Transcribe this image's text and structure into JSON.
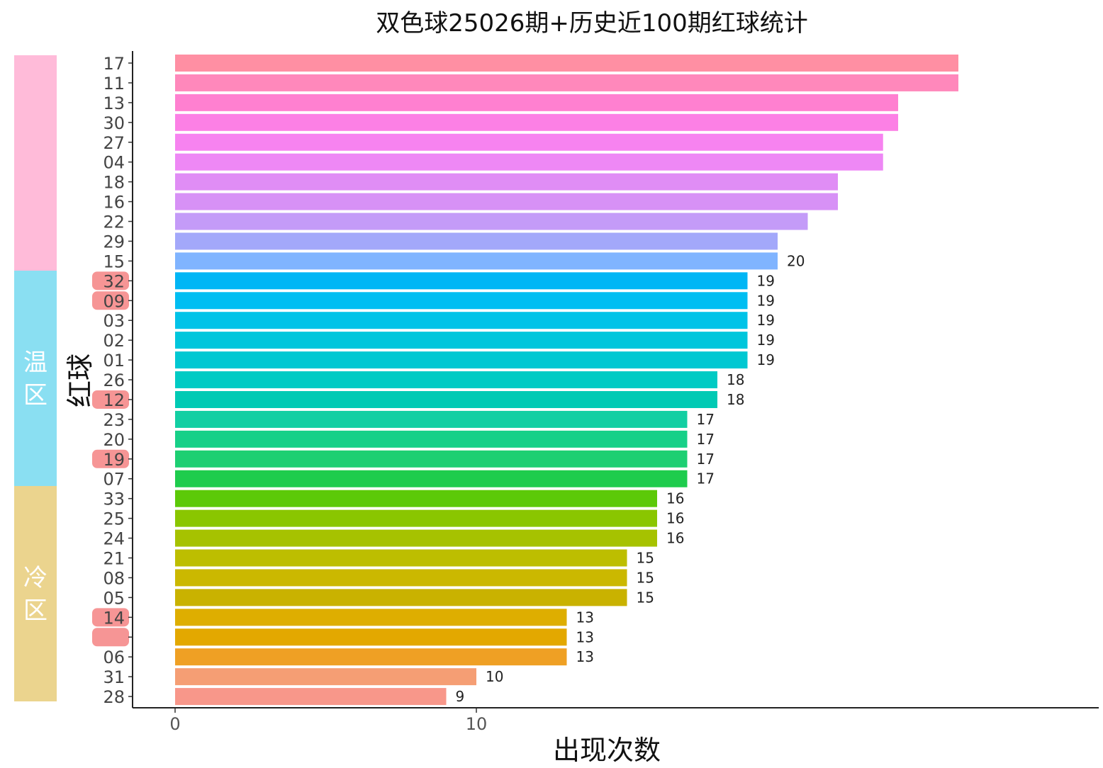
{
  "chart_data": {
    "type": "bar",
    "orientation": "horizontal",
    "title": "双色球25026期+历史近100期红球统计",
    "xlabel": "出现次数",
    "ylabel": "红球",
    "xlim": [
      0,
      30
    ],
    "x_ticks": [
      "0",
      "10"
    ],
    "grid": false,
    "legend": "none",
    "categories": [
      "17",
      "11",
      "13",
      "30",
      "27",
      "04",
      "18",
      "16",
      "22",
      "29",
      "15",
      "32",
      "09",
      "03",
      "02",
      "01",
      "26",
      "12",
      "23",
      "20",
      "19",
      "07",
      "33",
      "25",
      "24",
      "21",
      "08",
      "05",
      "14",
      "",
      "06",
      "31",
      "28"
    ],
    "values": [
      26,
      26,
      24,
      24,
      23.5,
      23.5,
      22,
      22,
      21,
      20,
      20,
      19,
      19,
      19,
      19,
      19,
      18,
      18,
      17,
      17,
      17,
      17,
      16,
      16,
      16,
      15,
      15,
      15,
      13,
      13,
      13,
      10,
      9
    ],
    "data_labels": [
      "",
      "",
      "",
      "",
      "",
      "",
      "",
      "",
      "",
      "",
      "20",
      "19",
      "19",
      "19",
      "19",
      "19",
      "18",
      "18",
      "17",
      "17",
      "17",
      "17",
      "16",
      "16",
      "16",
      "15",
      "15",
      "15",
      "13",
      "13",
      "13",
      "10",
      "9"
    ],
    "bar_colors": [
      "#FF8FA3",
      "#FF88BB",
      "#FF80D0",
      "#FC80E5",
      "#F783F0",
      "#EE88F5",
      "#E08DF5",
      "#D791F6",
      "#C49BF8",
      "#A3A8FA",
      "#80B4FF",
      "#00B6F5",
      "#00BEF2",
      "#00C3E8",
      "#00C6DC",
      "#00C8D2",
      "#00CBC4",
      "#00CAB4",
      "#13CFA3",
      "#17D088",
      "#1DCF72",
      "#1ECC4D",
      "#5CC908",
      "#8AC600",
      "#A6C200",
      "#BDBE00",
      "#CBB800",
      "#C9B200",
      "#DEAE00",
      "#E3A800",
      "#EFA024",
      "#F59E74",
      "#F8978A"
    ],
    "highlighted": [
      "32",
      "09",
      "12",
      "19",
      "14",
      ""
    ],
    "highlight_color": "#F58383",
    "zones": [
      {
        "label": "",
        "color": "#FFBBD9"
      },
      {
        "label": "温区",
        "color": "#8ADFF2"
      },
      {
        "label": "冷区",
        "color": "#EBD48E"
      }
    ]
  }
}
